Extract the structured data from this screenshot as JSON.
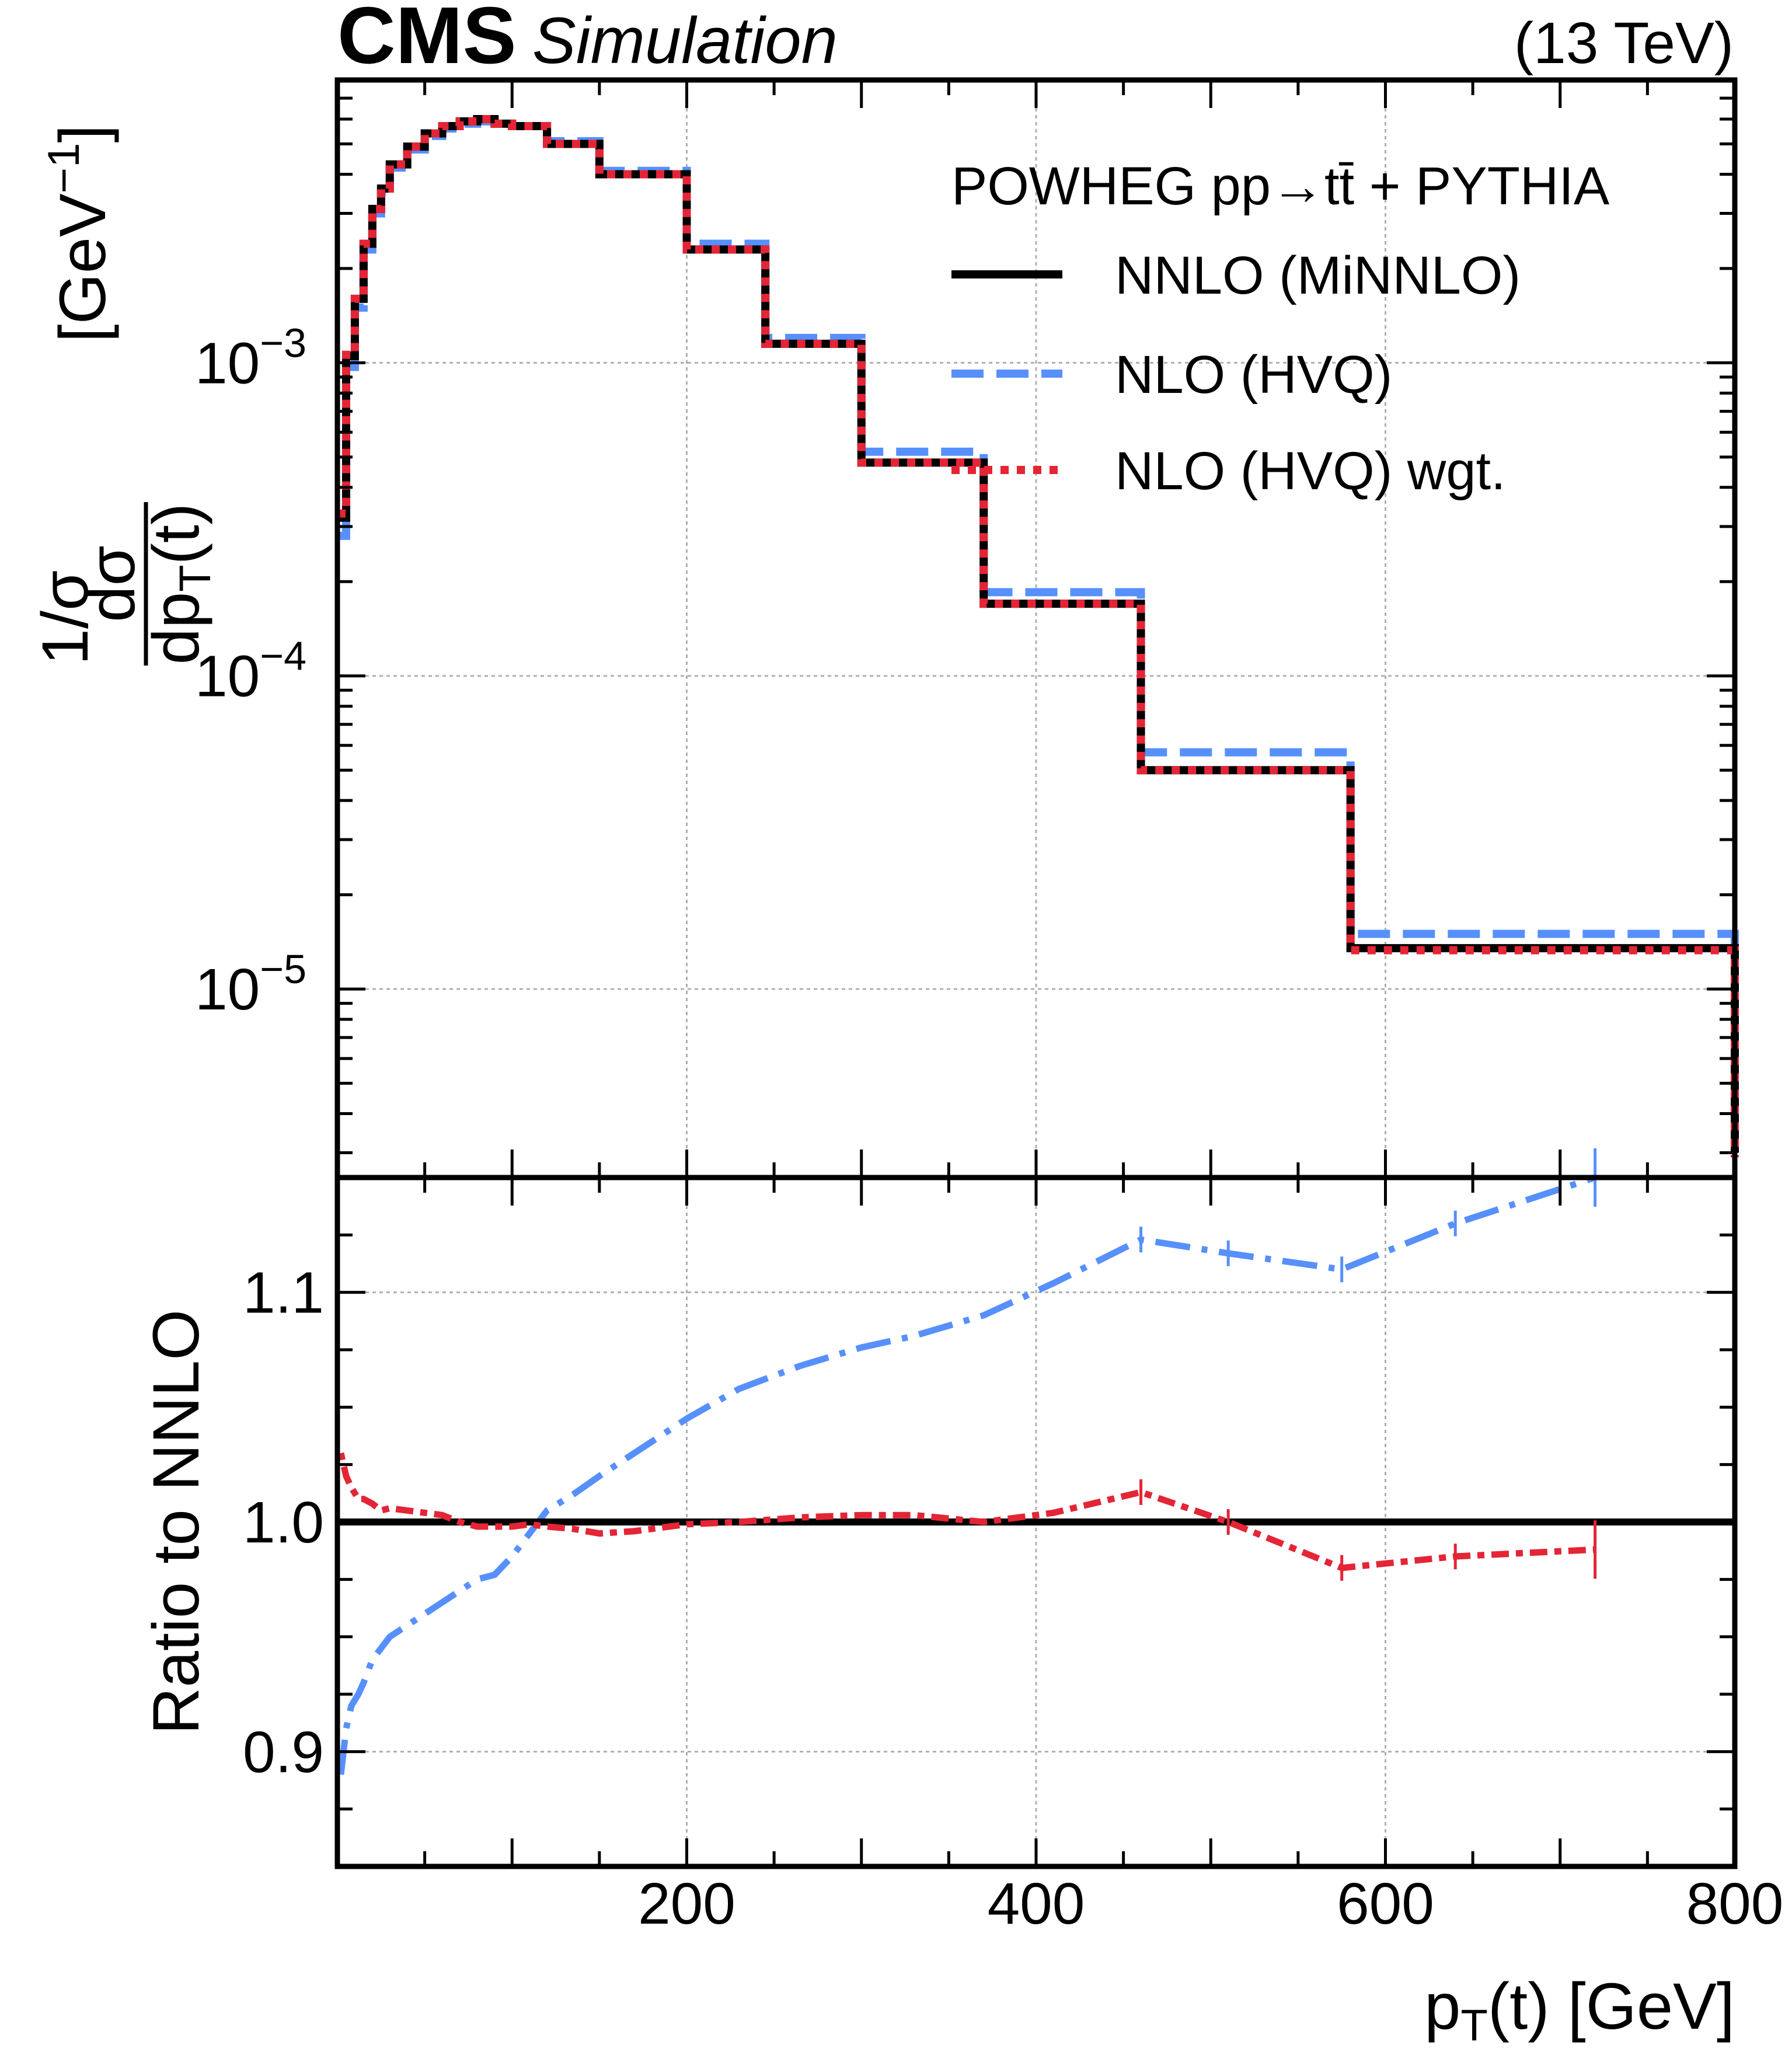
{
  "header": {
    "experiment": "CMS",
    "tag": "Simulation",
    "energy": "(13 TeV)"
  },
  "legend": {
    "title": "POWHEG pp→tt̄ + PYTHIA",
    "placement": "top-right",
    "entries": [
      {
        "label": "NNLO (MiNNLO)",
        "color": "#000000",
        "style": "solid"
      },
      {
        "label": "NLO (HVQ)",
        "color": "#5790fc",
        "style": "dashed"
      },
      {
        "label": "NLO (HVQ) wgt.",
        "color": "#e42536",
        "style": "dotted"
      }
    ]
  },
  "colors": {
    "nnlo": "#000000",
    "nlo": "#5790fc",
    "nlo_wgt": "#e42536",
    "grid": "#b0b0b0"
  },
  "chart_data": [
    {
      "type": "line",
      "panel": "top",
      "ylabel": "1/σ dσ/dpₜ(t)  [GeV⁻¹]",
      "yscale": "log",
      "ylim": [
        2.5e-06,
        0.008
      ],
      "xlim": [
        0,
        800
      ],
      "yticks": [
        {
          "value": 0.001,
          "mantissa": "10",
          "exponent": "−3"
        },
        {
          "value": 0.0001,
          "mantissa": "10",
          "exponent": "−4"
        },
        {
          "value": 1e-05,
          "mantissa": "10",
          "exponent": "−5"
        }
      ],
      "grid": true,
      "bin_edges": [
        0,
        5,
        10,
        15,
        20,
        25,
        30,
        40,
        50,
        60,
        70,
        80,
        90,
        100,
        110,
        120,
        135,
        150,
        170,
        200,
        210,
        245,
        265,
        300,
        330,
        370,
        410,
        460,
        510,
        580,
        640,
        800
      ],
      "series": [
        {
          "name": "NNLO (MiNNLO)",
          "key": "nnlo",
          "values": [
            0.00032,
            0.00105,
            0.0016,
            0.0024,
            0.0031,
            0.0036,
            0.0043,
            0.0049,
            0.0054,
            0.0057,
            0.0059,
            0.006,
            0.0058,
            0.0057,
            0.0057,
            0.005,
            0.005,
            0.004,
            0.004,
            0.0023,
            0.0023,
            0.00115,
            0.00115,
            0.00048,
            0.00048,
            0.00017,
            0.00017,
            5e-05,
            5e-05,
            1.35e-05,
            1.35e-05,
            3e-06
          ]
        },
        {
          "name": "NLO (HVQ)",
          "key": "nlo",
          "values": [
            0.00028,
            0.00097,
            0.0015,
            0.0023,
            0.003,
            0.0035,
            0.0042,
            0.0048,
            0.0053,
            0.0056,
            0.0058,
            0.0059,
            0.0058,
            0.0057,
            0.0057,
            0.0051,
            0.0051,
            0.0041,
            0.0041,
            0.0024,
            0.0024,
            0.0012,
            0.0012,
            0.00052,
            0.00052,
            0.000185,
            0.000185,
            5.7e-05,
            5.7e-05,
            1.5e-05,
            1.5e-05,
            3.5e-06
          ]
        },
        {
          "name": "NLO (HVQ) wgt.",
          "key": "nlo_wgt",
          "values": [
            0.00033,
            0.00106,
            0.0016,
            0.0024,
            0.0031,
            0.0036,
            0.0043,
            0.0049,
            0.0054,
            0.0057,
            0.0059,
            0.006,
            0.0058,
            0.0057,
            0.0057,
            0.005,
            0.005,
            0.004,
            0.004,
            0.0023,
            0.0023,
            0.00115,
            0.00115,
            0.00048,
            0.00048,
            0.00017,
            0.00017,
            5e-05,
            5e-05,
            1.33e-05,
            1.33e-05,
            2.9e-06
          ]
        }
      ]
    },
    {
      "type": "line",
      "panel": "bottom",
      "ylabel": "Ratio to NNLO",
      "xlabel": "pₜ(t)  [GeV]",
      "xlim": [
        0,
        800
      ],
      "ylim": [
        0.85,
        1.15
      ],
      "xticks": [
        200,
        400,
        600,
        800
      ],
      "yticks": [
        0.9,
        1.0,
        1.1
      ],
      "ytick_labels": [
        "0.9",
        "1.0",
        "1.1"
      ],
      "grid": true,
      "series": [
        {
          "name": "NNLO (MiNNLO)",
          "key": "nnlo",
          "x": [
            0,
            800
          ],
          "y": [
            1.0,
            1.0
          ]
        },
        {
          "name": "NLO (HVQ)",
          "key": "nlo",
          "x": [
            2,
            5,
            8,
            12,
            15,
            20,
            25,
            30,
            40,
            50,
            60,
            70,
            80,
            90,
            100,
            110,
            120,
            135,
            150,
            170,
            200,
            230,
            265,
            300,
            330,
            370,
            410,
            460,
            510,
            575,
            640,
            720
          ],
          "y": [
            0.89,
            0.91,
            0.92,
            0.925,
            0.93,
            0.94,
            0.945,
            0.95,
            0.955,
            0.96,
            0.965,
            0.97,
            0.975,
            0.977,
            0.985,
            0.995,
            1.005,
            1.012,
            1.02,
            1.03,
            1.045,
            1.058,
            1.068,
            1.076,
            1.081,
            1.09,
            1.104,
            1.123,
            1.117,
            1.11,
            1.13,
            1.16
          ]
        },
        {
          "name": "NLO (HVQ) wgt.",
          "key": "nlo_wgt",
          "x": [
            2,
            5,
            8,
            12,
            15,
            20,
            25,
            30,
            40,
            50,
            60,
            70,
            80,
            90,
            100,
            110,
            120,
            135,
            150,
            170,
            200,
            230,
            265,
            300,
            330,
            370,
            410,
            460,
            510,
            575,
            640,
            720
          ],
          "y": [
            1.03,
            1.02,
            1.015,
            1.01,
            1.01,
            1.008,
            1.005,
            1.006,
            1.005,
            1.004,
            1.003,
            1.0,
            0.998,
            0.998,
            0.998,
            0.999,
            0.998,
            0.997,
            0.995,
            0.996,
            0.999,
            1.0,
            1.002,
            1.003,
            1.003,
            1.0,
            1.004,
            1.013,
            1.0,
            0.98,
            0.985,
            0.988
          ]
        }
      ]
    }
  ]
}
